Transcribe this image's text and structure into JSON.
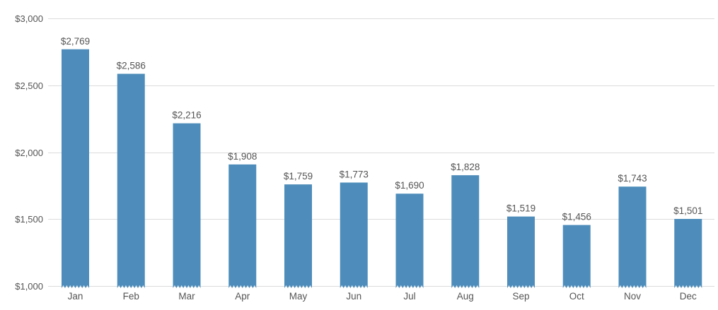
{
  "chart_data": {
    "type": "bar",
    "title": "",
    "xlabel": "",
    "ylabel": "",
    "categories": [
      "Jan",
      "Feb",
      "Mar",
      "Apr",
      "May",
      "Jun",
      "Jul",
      "Aug",
      "Sep",
      "Oct",
      "Nov",
      "Dec"
    ],
    "values": [
      2769,
      2586,
      2216,
      1908,
      1759,
      1773,
      1690,
      1828,
      1519,
      1456,
      1743,
      1501
    ],
    "value_labels": [
      "$2,769",
      "$2,586",
      "$2,216",
      "$1,908",
      "$1,759",
      "$1,773",
      "$1,690",
      "$1,828",
      "$1,519",
      "$1,456",
      "$1,743",
      "$1,501"
    ],
    "ylim": [
      1000,
      3000
    ],
    "y_ticks": [
      1000,
      1500,
      2000,
      2500,
      3000
    ],
    "y_tick_labels": [
      "$1,000",
      "$1,500",
      "$2,000",
      "$2,500",
      "$3,000"
    ],
    "axis_break": true,
    "grid": true,
    "legend": "none",
    "bar_color": "#4e8dbb"
  }
}
